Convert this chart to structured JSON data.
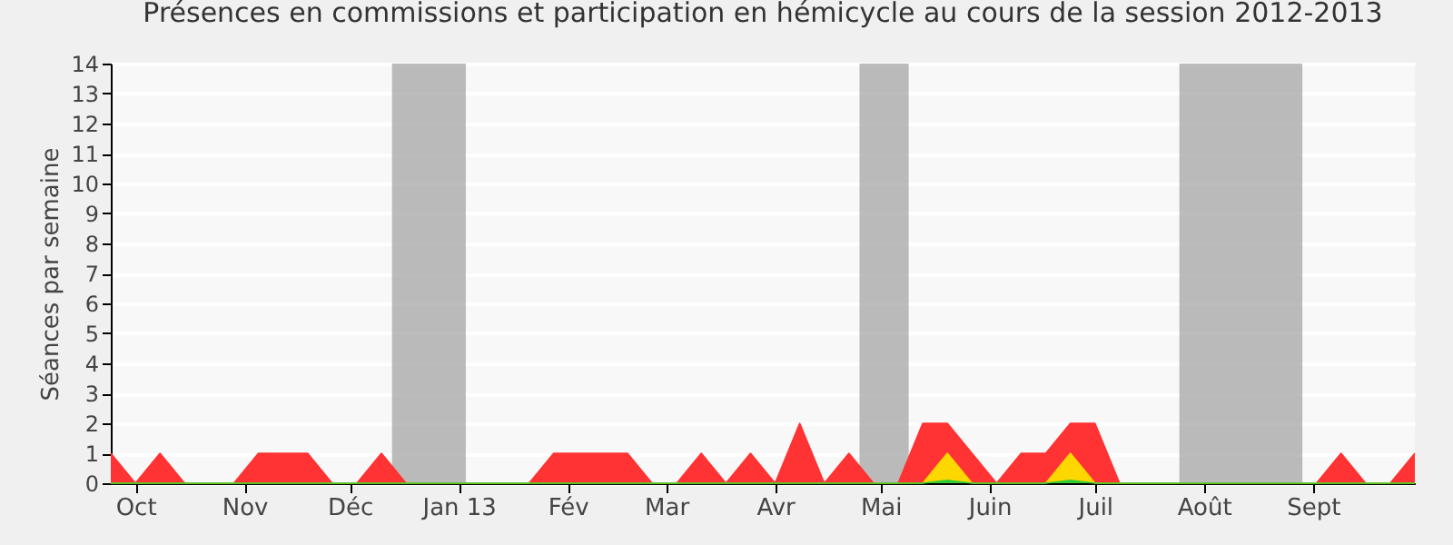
{
  "chart_data": {
    "type": "area",
    "title": "Présences en commissions et participation en hémicycle au cours de la session 2012-2013",
    "ylabel": "Séances par semaine",
    "x": [
      "2012-09-24",
      "2012-10-01",
      "2012-10-08",
      "2012-10-15",
      "2012-10-22",
      "2012-10-29",
      "2012-11-05",
      "2012-11-12",
      "2012-11-19",
      "2012-11-26",
      "2012-12-03",
      "2012-12-10",
      "2012-12-17",
      "2012-12-24",
      "2012-12-31",
      "2013-01-07",
      "2013-01-14",
      "2013-01-21",
      "2013-01-28",
      "2013-02-04",
      "2013-02-11",
      "2013-02-18",
      "2013-02-25",
      "2013-03-04",
      "2013-03-11",
      "2013-03-18",
      "2013-03-25",
      "2013-04-01",
      "2013-04-08",
      "2013-04-15",
      "2013-04-22",
      "2013-04-29",
      "2013-05-06",
      "2013-05-13",
      "2013-05-20",
      "2013-05-27",
      "2013-06-03",
      "2013-06-10",
      "2013-06-17",
      "2013-06-24",
      "2013-07-01",
      "2013-07-08",
      "2013-07-15",
      "2013-07-22",
      "2013-07-29",
      "2013-08-05",
      "2013-08-12",
      "2013-08-19",
      "2013-08-26",
      "2013-09-02",
      "2013-09-09",
      "2013-09-16",
      "2013-09-23",
      "2013-09-30"
    ],
    "series": [
      {
        "color": "#ff3333",
        "values": [
          1,
          0,
          1,
          0,
          0,
          0,
          1,
          1,
          1,
          0,
          0,
          1,
          0,
          0,
          0,
          0,
          0,
          0,
          1,
          1,
          1,
          1,
          0,
          0,
          1,
          0,
          1,
          0,
          2,
          0,
          1,
          0,
          0,
          2,
          2,
          1,
          0,
          1,
          1,
          2,
          2,
          0,
          0,
          0,
          0,
          0,
          0,
          0,
          0,
          0,
          1,
          0,
          0,
          1
        ]
      },
      {
        "color": "#ffd700",
        "values": [
          0,
          0,
          0,
          0,
          0,
          0,
          0,
          0,
          0,
          0,
          0,
          0,
          0,
          0,
          0,
          0,
          0,
          0,
          0,
          0,
          0,
          0,
          0,
          0,
          0,
          0,
          0,
          0,
          0,
          0,
          0,
          0,
          0,
          0,
          1,
          0,
          0,
          0,
          0,
          1,
          0,
          0,
          0,
          0,
          0,
          0,
          0,
          0,
          0,
          0,
          0,
          0,
          0,
          0
        ]
      },
      {
        "color": "#33cc33",
        "values": [
          0,
          0,
          0,
          0,
          0,
          0,
          0,
          0,
          0,
          0,
          0,
          0,
          0,
          0,
          0,
          0,
          0,
          0,
          0,
          0,
          0,
          0,
          0,
          0,
          0,
          0,
          0,
          0,
          0,
          0,
          0,
          0,
          0,
          0,
          0.1,
          0,
          0,
          0,
          0,
          0.1,
          0,
          0,
          0,
          0,
          0,
          0,
          0,
          0,
          0,
          0,
          0,
          0,
          0,
          0
        ]
      }
    ],
    "xlim": [
      "2012-09-24",
      "2013-09-30"
    ],
    "xticks": [
      {
        "value": "2012-10-01",
        "label": "Oct"
      },
      {
        "value": "2012-11-01",
        "label": "Nov"
      },
      {
        "value": "2012-12-01",
        "label": "Déc"
      },
      {
        "value": "2013-01-01",
        "label": "Jan 13"
      },
      {
        "value": "2013-02-01",
        "label": "Fév"
      },
      {
        "value": "2013-03-01",
        "label": "Mar"
      },
      {
        "value": "2013-04-01",
        "label": "Avr"
      },
      {
        "value": "2013-05-01",
        "label": "Mai"
      },
      {
        "value": "2013-06-01",
        "label": "Juin"
      },
      {
        "value": "2013-07-01",
        "label": "Juil"
      },
      {
        "value": "2013-08-01",
        "label": "Août"
      },
      {
        "value": "2013-09-01",
        "label": "Sept"
      }
    ],
    "ylim": [
      0,
      14
    ],
    "yticks": [
      0,
      1,
      2,
      3,
      4,
      5,
      6,
      7,
      8,
      9,
      10,
      11,
      12,
      13,
      14
    ],
    "bands": [
      {
        "axis": "x",
        "from": "2012-12-13",
        "to": "2013-01-03",
        "color": "#a6a6a6"
      },
      {
        "axis": "x",
        "from": "2013-04-25",
        "to": "2013-05-09",
        "color": "#a6a6a6"
      },
      {
        "axis": "x",
        "from": "2013-07-25",
        "to": "2013-08-29",
        "color": "#a6a6a6"
      }
    ],
    "grid": "y"
  }
}
